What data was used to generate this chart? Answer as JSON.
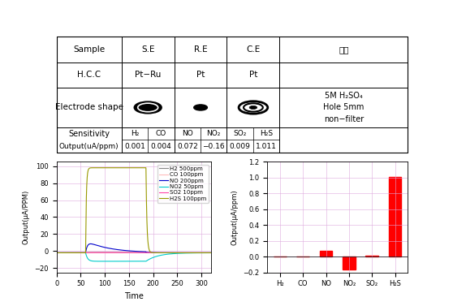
{
  "table": {
    "row1": [
      "Sample",
      "S.E",
      "R.E",
      "C.E",
      "비고"
    ],
    "row2": [
      "H.C.C",
      "Pt−Ru",
      "Pt",
      "Pt"
    ],
    "bigo": "5M H₂SO₄\nHole 5mm\nnon−filter",
    "sensitivity_gases": [
      "H₂",
      "CO",
      "NO",
      "NO₂",
      "SO₂",
      "H₂S"
    ],
    "sensitivity_values": [
      "0.001",
      "0.004",
      "0.072",
      "−0.16",
      "0.009",
      "1.011"
    ]
  },
  "line_plot": {
    "xlabel": "Time",
    "ylabel": "Output(μA/PPM)",
    "ylim": [
      -25,
      105
    ],
    "xlim": [
      0,
      320
    ],
    "xticks": [
      0,
      50,
      100,
      150,
      200,
      250,
      300
    ],
    "yticks": [
      -20,
      0,
      20,
      40,
      60,
      80,
      100
    ],
    "legend_labels": [
      "H2 500ppm",
      "CO 100ppm",
      "NO 200ppm",
      "NO2 50ppm",
      "SO2 10ppm",
      "H2S 100ppm"
    ],
    "line_colors": [
      "#888888",
      "#ffbbbb",
      "#0000cc",
      "#00cccc",
      "#ff44aa",
      "#999900"
    ],
    "gas_on": 60,
    "gas_off": 185,
    "line_width": 0.8
  },
  "bar_plot": {
    "categories": [
      "H₂",
      "CO",
      "NO",
      "NO₂",
      "SO₂",
      "H₂S"
    ],
    "values": [
      0.001,
      0.004,
      0.072,
      -0.16,
      0.009,
      1.011
    ],
    "bar_color": "#ff0000",
    "ylabel": "Output(μA/ppm)",
    "ylim": [
      -0.2,
      1.2
    ],
    "yticks": [
      -0.2,
      0.0,
      0.2,
      0.4,
      0.6,
      0.8,
      1.0,
      1.2
    ]
  },
  "bg_color": "#ffffff",
  "grid_color": "#ddaadd"
}
